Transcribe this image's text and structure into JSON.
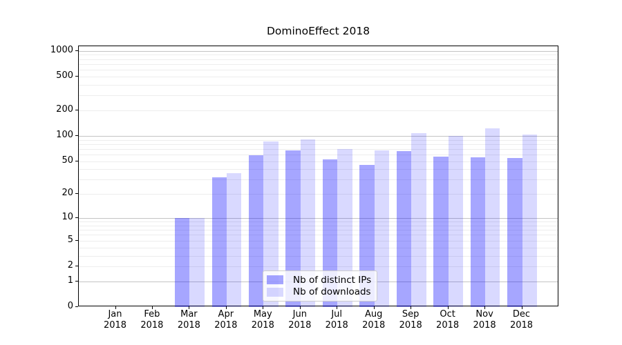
{
  "title": "DominoEffect 2018",
  "chart_data": {
    "type": "bar",
    "title": "DominoEffect 2018",
    "x_categories": [
      "Jan",
      "Feb",
      "Mar",
      "Apr",
      "May",
      "Jun",
      "Jul",
      "Aug",
      "Sep",
      "Oct",
      "Nov",
      "Dec"
    ],
    "x_year": "2018",
    "series": [
      {
        "name": "Nb of distinct IPs",
        "color": "rgba(0,0,255,0.35)",
        "values": [
          0,
          0,
          10,
          32,
          59,
          67,
          53,
          45,
          66,
          57,
          56,
          55
        ]
      },
      {
        "name": "Nb of downloads",
        "color": "rgba(0,0,255,0.15)",
        "values": [
          0,
          0,
          10,
          36,
          86,
          91,
          70,
          67,
          107,
          100,
          122,
          103
        ]
      }
    ],
    "y_scale": "log10(value+1)",
    "ylim": [
      0,
      1130
    ],
    "y_ticks": [
      0,
      1,
      2,
      5,
      10,
      20,
      50,
      100,
      200,
      500,
      1000
    ],
    "gridlines": {
      "major": [
        1,
        10,
        100,
        1000
      ],
      "minor": [
        2,
        3,
        4,
        5,
        6,
        7,
        8,
        9,
        20,
        30,
        40,
        50,
        60,
        70,
        80,
        90,
        200,
        300,
        400,
        500,
        600,
        700,
        800,
        900
      ]
    },
    "bar_width_fraction": 0.4,
    "grid": true,
    "legend_position": "bottom-center"
  },
  "colors": {
    "background": "#ffffff",
    "axis": "#000000",
    "text": "#000000",
    "major_grid": "#c3c3c3",
    "minor_grid": "#ededed",
    "legend_border": "#cccccc",
    "legend_background": "rgba(255,255,255,0.8)"
  }
}
